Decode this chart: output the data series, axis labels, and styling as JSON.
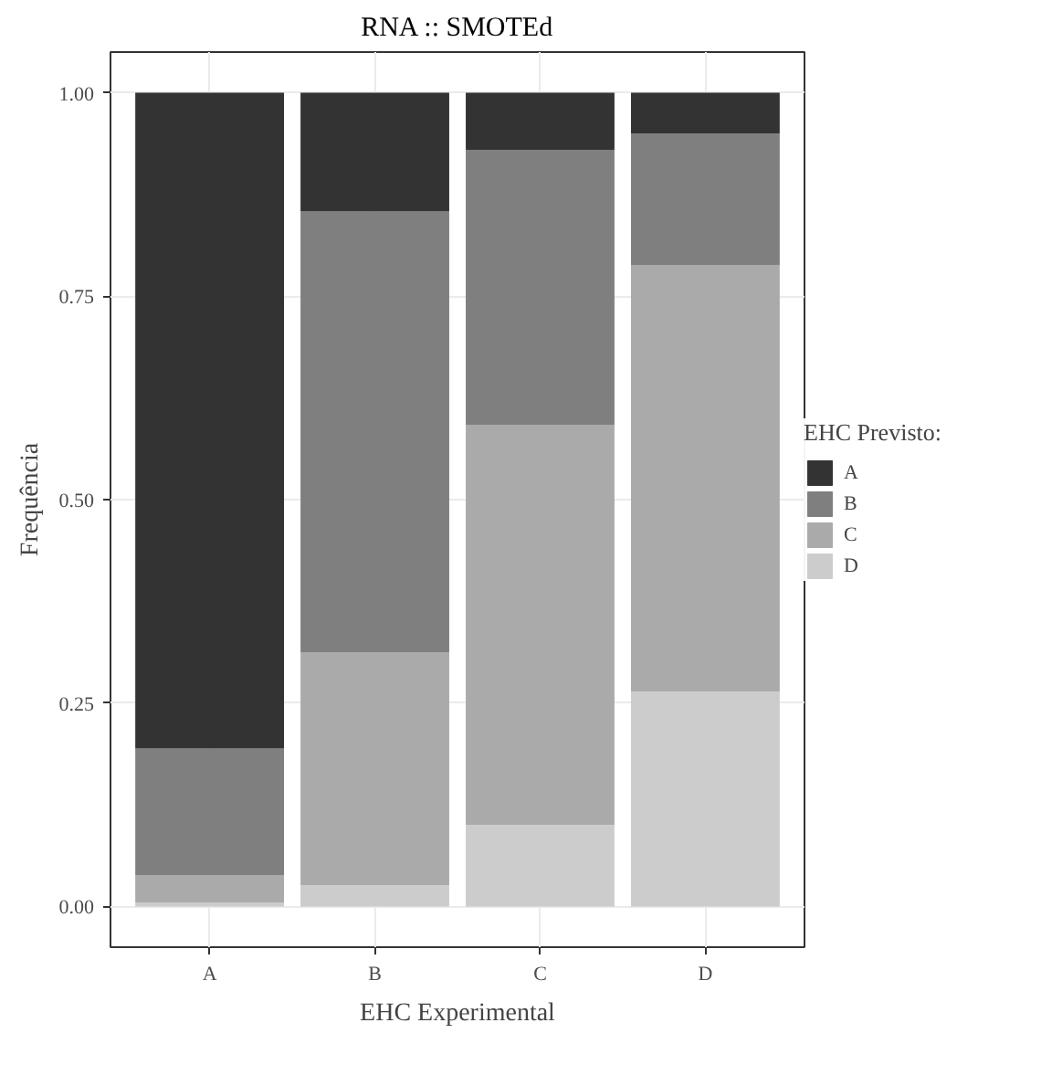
{
  "chart_data": {
    "type": "bar",
    "title": "RNA :: SMOTEd",
    "xlabel": "EHC Experimental",
    "ylabel": "Frequência",
    "legend_title": "EHC Previsto:",
    "categories": [
      "A",
      "B",
      "C",
      "D"
    ],
    "stacked": true,
    "series": [
      {
        "name": "D",
        "color": "#cccccc",
        "values": [
          0.005,
          0.026,
          0.1,
          0.264
        ]
      },
      {
        "name": "C",
        "color": "#aaaaaa",
        "values": [
          0.033,
          0.286,
          0.492,
          0.524
        ]
      },
      {
        "name": "B",
        "color": "#7f7f7f",
        "values": [
          0.156,
          0.542,
          0.338,
          0.162
        ]
      },
      {
        "name": "A",
        "color": "#333333",
        "values": [
          0.806,
          0.146,
          0.07,
          0.05
        ]
      }
    ],
    "ylim": [
      -0.05,
      1.05
    ],
    "yticks": [
      {
        "value": 0,
        "label": "0.00"
      },
      {
        "value": 0.25,
        "label": "0.25"
      },
      {
        "value": 0.5,
        "label": "0.50"
      },
      {
        "value": 0.75,
        "label": "0.75"
      },
      {
        "value": 1,
        "label": "1.00"
      }
    ],
    "grid": true,
    "legend": "right"
  }
}
